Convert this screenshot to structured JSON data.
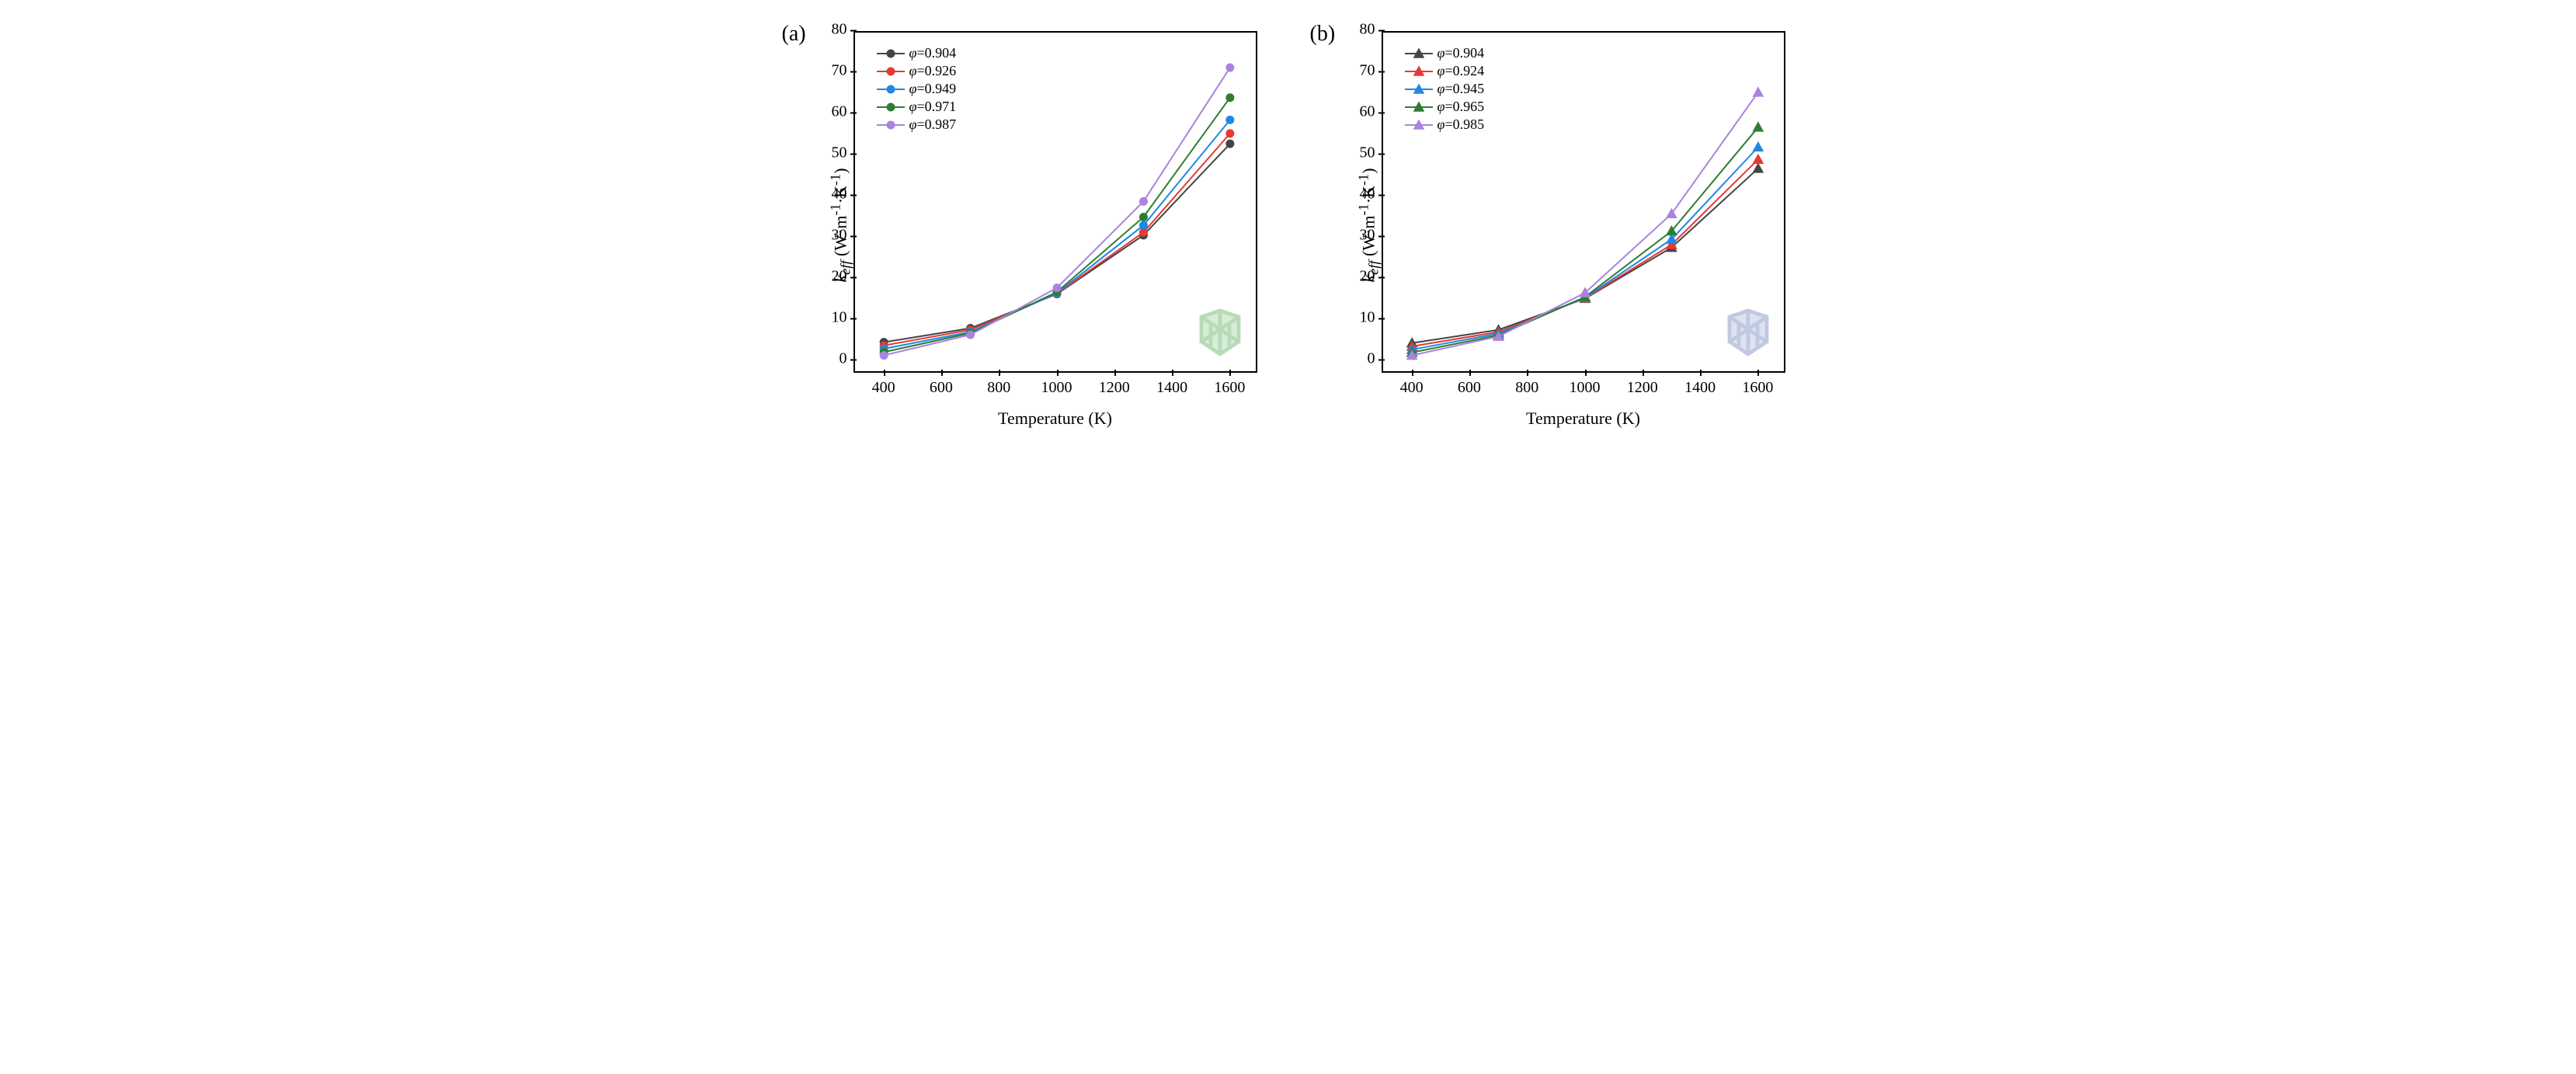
{
  "figure": {
    "panels": [
      {
        "id": "a",
        "label": "(a)",
        "type": "line",
        "marker": "circle",
        "xlabel": "Temperature (K)",
        "ylabel_html": "<span class='phi'>k<sub>eff</sub></span> (W·m<sup>-1</sup>·K<sup>-1</sup>)",
        "xlim": [
          300,
          1700
        ],
        "ylim": [
          -3,
          80
        ],
        "xticks": [
          400,
          600,
          800,
          1000,
          1200,
          1400,
          1600
        ],
        "yticks": [
          0,
          10,
          20,
          30,
          40,
          50,
          60,
          70,
          80
        ],
        "x": [
          400,
          700,
          1000,
          1300,
          1600
        ],
        "inset_color": "#c8e6c9",
        "inset_stroke": "#9ccc9c",
        "line_width": 2,
        "marker_size": 5,
        "background_color": "#ffffff",
        "series": [
          {
            "phi": "0.904",
            "color": "#444444",
            "y": [
              4.8,
              8.2,
              16.5,
              30.8,
              53.0
            ]
          },
          {
            "phi": "0.926",
            "color": "#e53935",
            "y": [
              4.0,
              7.8,
              16.6,
              31.5,
              55.5
            ]
          },
          {
            "phi": "0.949",
            "color": "#1e88e5",
            "y": [
              3.2,
              7.3,
              16.7,
              33.2,
              58.8
            ]
          },
          {
            "phi": "0.971",
            "color": "#2e7d32",
            "y": [
              2.4,
              7.0,
              17.0,
              35.2,
              64.2
            ]
          },
          {
            "phi": "0.987",
            "color": "#ab82e0",
            "y": [
              1.6,
              6.6,
              18.0,
              39.0,
              71.5
            ]
          }
        ]
      },
      {
        "id": "b",
        "label": "(b)",
        "type": "line",
        "marker": "triangle",
        "xlabel": "Temperature (K)",
        "ylabel_html": "<span class='phi'>k<sub>eff</sub></span> (W·m<sup>-1</sup>·K<sup>-1</sup>)",
        "xlim": [
          300,
          1700
        ],
        "ylim": [
          -3,
          80
        ],
        "xticks": [
          400,
          600,
          800,
          1000,
          1200,
          1400,
          1600
        ],
        "yticks": [
          0,
          10,
          20,
          30,
          40,
          50,
          60,
          70,
          80
        ],
        "x": [
          400,
          700,
          1000,
          1300,
          1600
        ],
        "inset_color": "#d0d8ec",
        "inset_stroke": "#a8b4d4",
        "line_width": 2,
        "marker_size": 5,
        "background_color": "#ffffff",
        "series": [
          {
            "phi": "0.904",
            "color": "#444444",
            "y": [
              4.6,
              7.8,
              15.4,
              27.8,
              47.0
            ]
          },
          {
            "phi": "0.924",
            "color": "#e53935",
            "y": [
              3.8,
              7.3,
              15.5,
              28.5,
              49.2
            ]
          },
          {
            "phi": "0.945",
            "color": "#1e88e5",
            "y": [
              3.0,
              6.9,
              15.6,
              29.8,
              52.2
            ]
          },
          {
            "phi": "0.965",
            "color": "#2e7d32",
            "y": [
              2.3,
              6.5,
              15.8,
              31.8,
              57.0
            ]
          },
          {
            "phi": "0.985",
            "color": "#ab82e0",
            "y": [
              1.6,
              6.2,
              16.8,
              36.0,
              65.5
            ]
          }
        ]
      }
    ]
  }
}
